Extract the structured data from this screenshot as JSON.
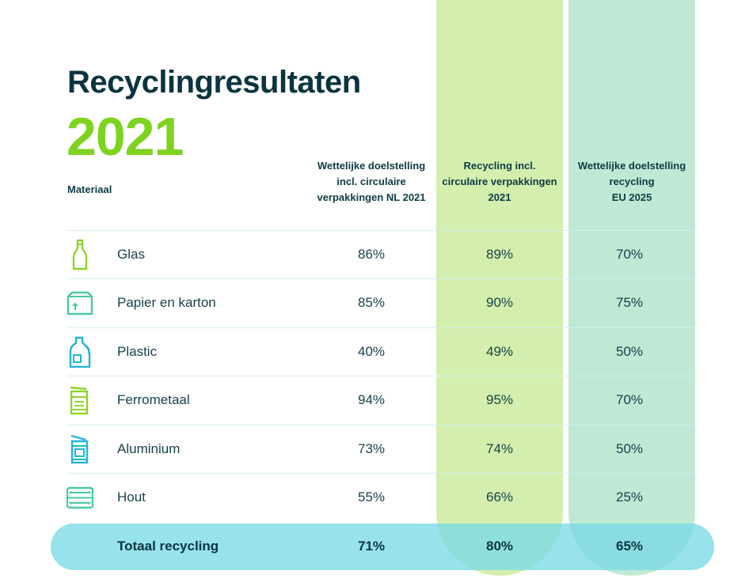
{
  "title": "Recyclingresultaten",
  "year": "2021",
  "colors": {
    "green_accent": "#7ed320",
    "recycling_column": "#d4efad",
    "eu_column": "#bfe9d4",
    "total_bar": "#7adae6",
    "text_dark": "#0b3440"
  },
  "chart_data": {
    "type": "table",
    "title": "Recyclingresultaten 2021",
    "columns": {
      "material": "Materiaal",
      "nl_target": "Wettelijke doelstelling incl. circulaire verpakkingen NL 2021",
      "recycling": "Recycling incl. circulaire verpakkingen 2021",
      "eu_target": "Wettelijke doelstelling recycling EU 2025"
    },
    "header_lines": {
      "nl_target": [
        "Wettelijke doelstelling",
        "incl. circulaire",
        "verpakkingen NL 2021"
      ],
      "recycling": [
        "Recycling incl.",
        "circulaire verpakkingen",
        "2021"
      ],
      "eu_target": [
        "Wettelijke doelstelling",
        "recycling",
        "EU 2025"
      ]
    },
    "rows": [
      {
        "material": "Glas",
        "icon": "bottle-icon",
        "nl_target": "86%",
        "recycling": "89%",
        "eu_target": "70%"
      },
      {
        "material": "Papier en karton",
        "icon": "box-icon",
        "nl_target": "85%",
        "recycling": "90%",
        "eu_target": "75%"
      },
      {
        "material": "Plastic",
        "icon": "plastic-bottle-icon",
        "nl_target": "40%",
        "recycling": "49%",
        "eu_target": "50%"
      },
      {
        "material": "Ferrometaal",
        "icon": "tin-can-icon",
        "nl_target": "94%",
        "recycling": "95%",
        "eu_target": "70%"
      },
      {
        "material": "Aluminium",
        "icon": "aluminium-can-icon",
        "nl_target": "73%",
        "recycling": "74%",
        "eu_target": "50%"
      },
      {
        "material": "Hout",
        "icon": "wooden-crate-icon",
        "nl_target": "55%",
        "recycling": "66%",
        "eu_target": "25%"
      }
    ],
    "total": {
      "label": "Totaal recycling",
      "nl_target": "71%",
      "recycling": "80%",
      "eu_target": "65%"
    }
  }
}
